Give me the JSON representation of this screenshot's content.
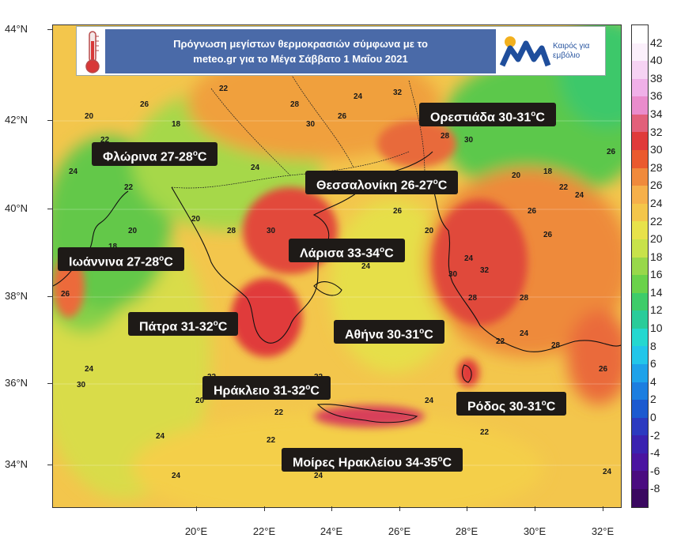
{
  "title": {
    "line1": "Πρόγνωση μεγίστων θερμοκρασιών σύμφωνα με το",
    "line2": "meteo.gr για το Μέγα Σάββατο 1 Μαΐου 2021"
  },
  "logo": {
    "text": "Καιρός για\nεμβόλιο",
    "mark_color": "#1f4e9c",
    "dot_color": "#f2b01e"
  },
  "axes": {
    "lat_labels": [
      "44°N",
      "42°N",
      "40°N",
      "38°N",
      "36°N",
      "34°N"
    ],
    "lon_labels": [
      "20°E",
      "22°E",
      "24°E",
      "26°E",
      "28°E",
      "30°E",
      "32°E"
    ]
  },
  "city_labels": [
    {
      "name": "Ορεστιάδα",
      "range": "30-31",
      "unit": "C"
    },
    {
      "name": "Φλώρινα",
      "range": "27-28",
      "unit": "C"
    },
    {
      "name": "Θεσσαλονίκη",
      "range": "26-27",
      "unit": "C"
    },
    {
      "name": "Λάρισα",
      "range": "33-34",
      "unit": "C"
    },
    {
      "name": "Ιωάννινα",
      "range": "27-28",
      "unit": "C"
    },
    {
      "name": "Πάτρα",
      "range": "31-32",
      "unit": "C"
    },
    {
      "name": "Αθήνα",
      "range": "30-31",
      "unit": "C"
    },
    {
      "name": "Ηράκλειο",
      "range": "31-32",
      "unit": "C"
    },
    {
      "name": "Ρόδος",
      "range": "30-31",
      "unit": "C"
    },
    {
      "name": "Μοίρες Ηρακλείου",
      "range": "34-35",
      "unit": "C"
    }
  ],
  "degree_sup": "o",
  "value_labels": [
    "20",
    "22",
    "24",
    "26",
    "28",
    "30",
    "32",
    "18",
    "20",
    "22",
    "24",
    "26",
    "28",
    "30",
    "24",
    "22",
    "20",
    "18",
    "26",
    "28",
    "30",
    "22",
    "24",
    "26",
    "20",
    "22",
    "24",
    "26",
    "28",
    "30",
    "32",
    "28",
    "26",
    "24",
    "22",
    "20",
    "18",
    "22",
    "24",
    "26",
    "28",
    "30",
    "24",
    "22",
    "20",
    "22",
    "24",
    "26",
    "22",
    "24",
    "22",
    "24",
    "22",
    "20",
    "22",
    "24",
    "26",
    "24"
  ],
  "colorbar": {
    "labels": [
      "42",
      "40",
      "38",
      "36",
      "34",
      "32",
      "30",
      "28",
      "26",
      "24",
      "22",
      "20",
      "18",
      "16",
      "14",
      "12",
      "10",
      "8",
      "6",
      "4",
      "2",
      "0",
      "-2",
      "-4",
      "-6",
      "-8"
    ],
    "colors": [
      "#fbf0fb",
      "#f6d3f3",
      "#f0b0e8",
      "#ea8ccc",
      "#e2607a",
      "#e03a3a",
      "#ea5a2e",
      "#f08a3c",
      "#f6b04a",
      "#f4c64a",
      "#e8e24a",
      "#c8e24a",
      "#98d84a",
      "#6ad24a",
      "#3ecc6a",
      "#2acc9a",
      "#24d8d0",
      "#22c6ea",
      "#1ea2ea",
      "#1c7ee0",
      "#1c5ad0",
      "#2c3ac0",
      "#3a22b0",
      "#4a14a0",
      "#4a0c80",
      "#3a0860"
    ]
  }
}
